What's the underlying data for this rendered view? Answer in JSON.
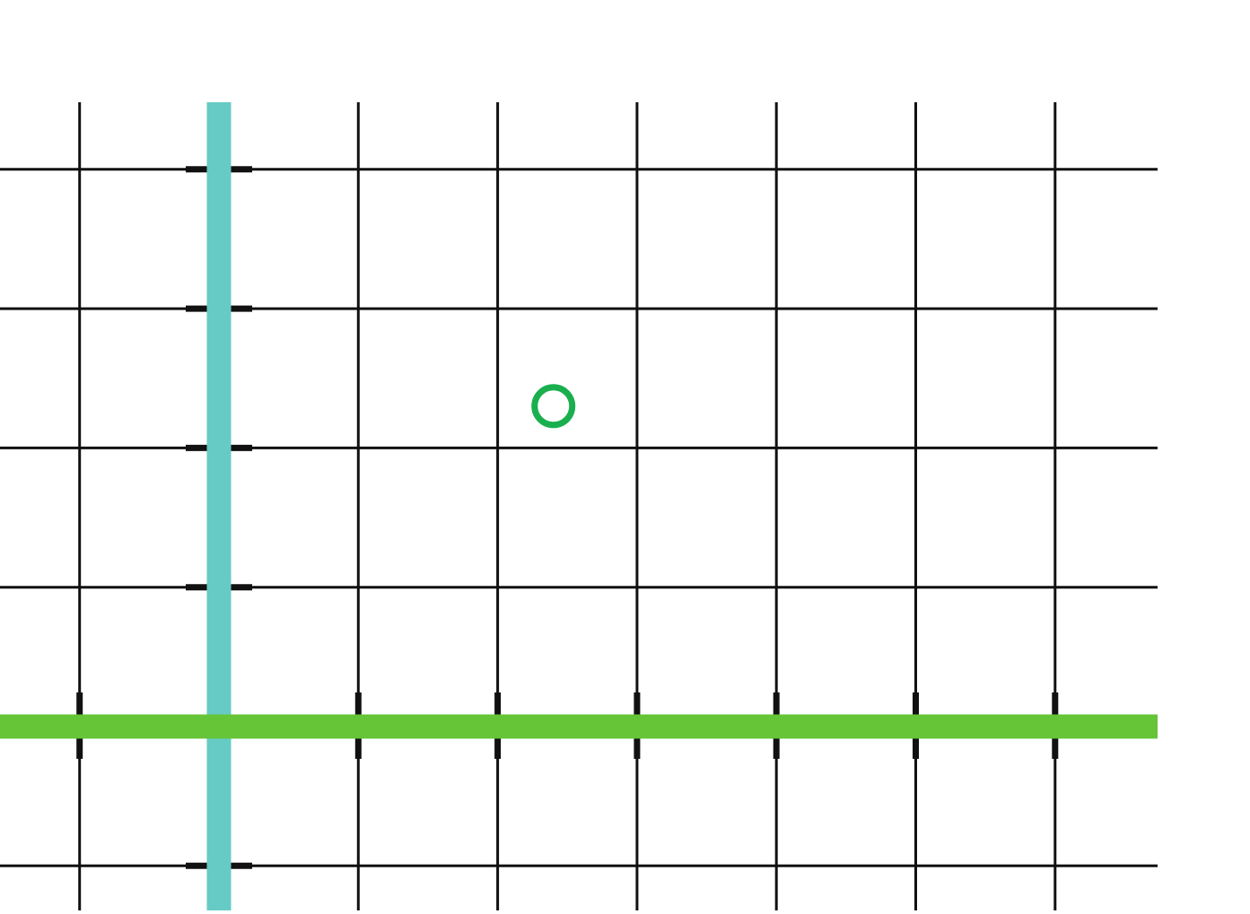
{
  "board": {
    "label": "",
    "background": "#ffffff",
    "grid_color": "#111111",
    "vertical_axis_color": "#66cbc4",
    "horizontal_axis_color": "#66c437",
    "point_color": "#1aaf4e"
  },
  "grid": {
    "columns_left_of_axis": 1,
    "columns_right_of_axis": 6,
    "rows_above_axis": 4,
    "rows_below_axis": 1
  },
  "point": {
    "x": 2.4,
    "y": 2.3,
    "style": "hollow circle"
  }
}
